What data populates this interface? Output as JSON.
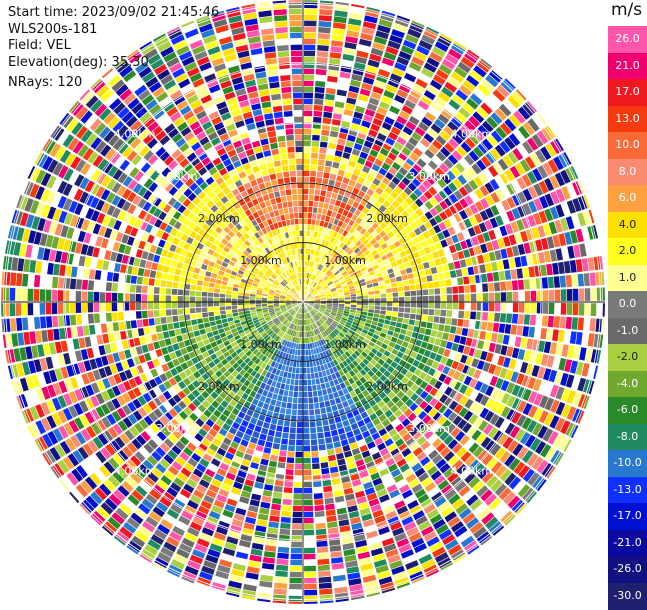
{
  "header": {
    "start_time": "Start time: 2023/09/02 21:45:46",
    "instrument": "WLS200s-181",
    "field": "Field: VEL",
    "elevation": "Elevation(deg): 35.30",
    "nrays": "NRays: 120"
  },
  "colorbar": {
    "unit": "m/s",
    "ticks": [
      "26.0",
      "21.0",
      "17.0",
      "13.0",
      "10.0",
      "8.0",
      "6.0",
      "4.0",
      "2.0",
      "1.0",
      "0.0",
      "-1.0",
      "-2.0",
      "-4.0",
      "-6.0",
      "-8.0",
      "-10.0",
      "-13.0",
      "-17.0",
      "-21.0",
      "-26.0",
      "-30.0"
    ],
    "colors": [
      "#ff55aa",
      "#f0006e",
      "#f01820",
      "#f53a10",
      "#f86a38",
      "#fa8a70",
      "#fca040",
      "#fde000",
      "#ffff20",
      "#fffe90",
      "#7a7a7a",
      "#6a6a6a",
      "#a8d040",
      "#70a830",
      "#2a8a2a",
      "#208a60",
      "#2878d0",
      "#1030ff",
      "#0010d0",
      "#0a0aa0",
      "#101080",
      "#202070"
    ]
  },
  "range_labels": {
    "r1": "1.00km",
    "r2": "2.00km",
    "r3": "3.00km",
    "r4": "4.00km"
  }
}
